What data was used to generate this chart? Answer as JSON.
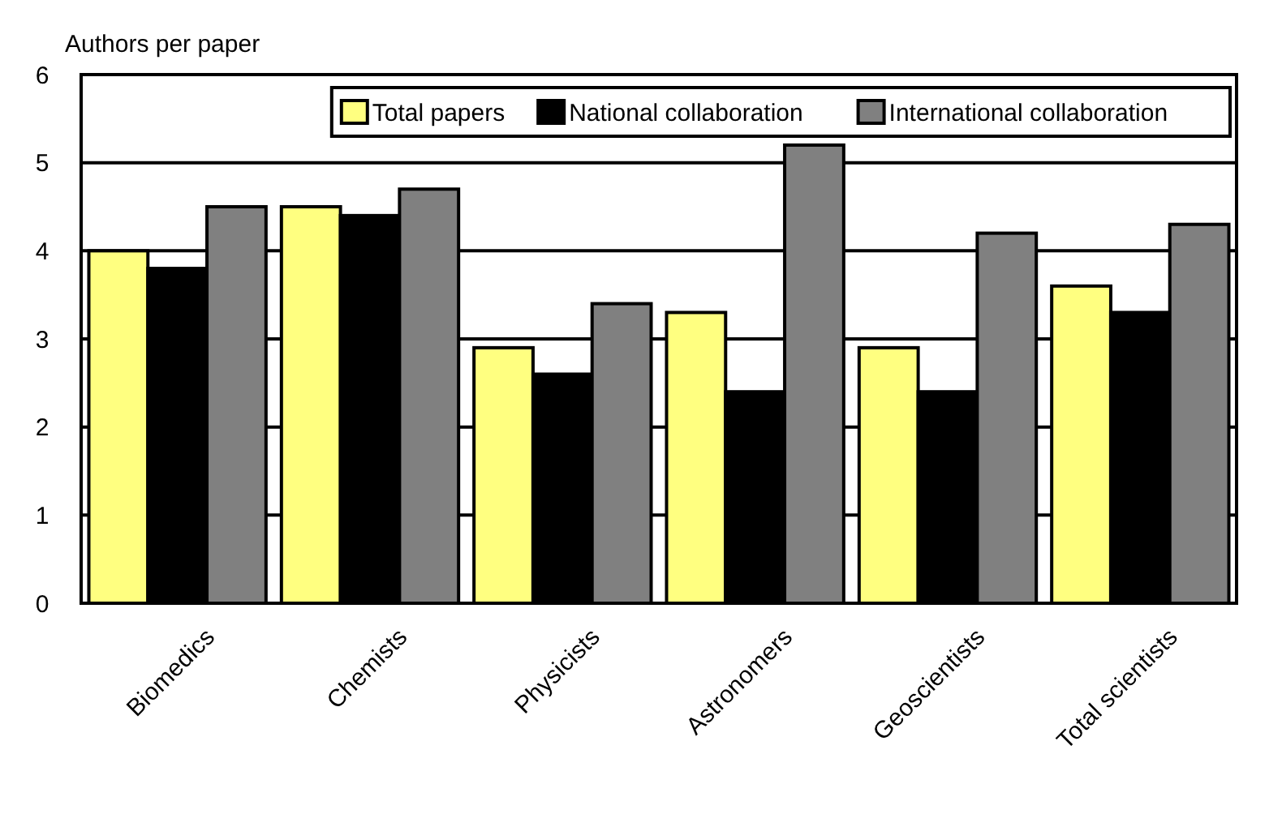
{
  "chart_data": {
    "type": "bar",
    "ylabel": "Authors per paper",
    "categories": [
      "Biomedics",
      "Chemists",
      "Physicists",
      "Astronomers",
      "Geoscientists",
      "Total scientists"
    ],
    "series": [
      {
        "name": "Total papers",
        "color": "#ffff80",
        "values": [
          4.0,
          4.5,
          2.9,
          3.3,
          2.9,
          3.6
        ]
      },
      {
        "name": "National collaboration",
        "color": "#000000",
        "values": [
          3.8,
          4.4,
          2.6,
          2.4,
          2.4,
          3.3
        ]
      },
      {
        "name": "International collaboration",
        "color": "#808080",
        "values": [
          4.5,
          4.7,
          3.4,
          5.2,
          4.2,
          4.3
        ]
      }
    ],
    "ylim": [
      0,
      6
    ],
    "yticks": [
      0,
      1,
      2,
      3,
      4,
      5,
      6
    ],
    "grid": "y",
    "legend": "top right"
  }
}
